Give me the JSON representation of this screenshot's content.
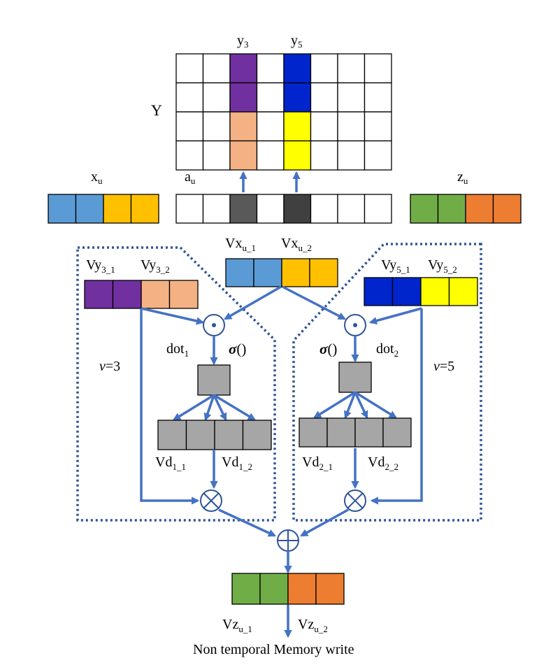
{
  "colors": {
    "white": "#FFFFFF",
    "blue": "#5B9BD5",
    "amber": "#FFC000",
    "green": "#70AD47",
    "orange": "#ED7D31",
    "purple": "#7030A0",
    "peach": "#F4B183",
    "navy": "#0025CC",
    "yellow": "#FFFF00",
    "gray": "#A6A6A6",
    "dark_gray": "#595959",
    "darker_gray": "#404040",
    "arrow": "#4472C4"
  },
  "matrix_Y": {
    "label": "Y",
    "col3_label": "y",
    "col3_sub": "3",
    "col5_label": "y",
    "col5_sub": "5",
    "rows": [
      [
        "white",
        "white",
        "purple",
        "white",
        "navy",
        "white",
        "white",
        "white"
      ],
      [
        "white",
        "white",
        "purple",
        "white",
        "navy",
        "white",
        "white",
        "white"
      ],
      [
        "white",
        "white",
        "peach",
        "white",
        "yellow",
        "white",
        "white",
        "white"
      ],
      [
        "white",
        "white",
        "peach",
        "white",
        "yellow",
        "white",
        "white",
        "white"
      ]
    ]
  },
  "x_u": {
    "label": "x",
    "sub": "u",
    "cells": [
      "blue",
      "blue",
      "amber",
      "amber"
    ]
  },
  "a_u": {
    "label": "a",
    "sub": "u",
    "cells": [
      "white",
      "white",
      "dark_gray",
      "white",
      "darker_gray",
      "white",
      "white",
      "white"
    ]
  },
  "z_u": {
    "label": "z",
    "sub": "u",
    "cells": [
      "green",
      "green",
      "orange",
      "orange"
    ]
  },
  "Vx": {
    "cells": [
      "blue",
      "blue",
      "amber",
      "amber"
    ],
    "label1": "Vx",
    "sub1": "u_1",
    "label2": "Vx",
    "sub2": "u_2"
  },
  "left": {
    "vy_cells": [
      "purple",
      "purple",
      "peach",
      "peach"
    ],
    "vy_label1": "Vy",
    "vy_sub1": "3_1",
    "vy_label2": "Vy",
    "vy_sub2": "3_2",
    "dot_label": "dot",
    "dot_sub": "1",
    "sigma": "σ",
    "sigma_parens": "()",
    "v_var": "v",
    "v_value": "=3",
    "vd_cells": [
      "gray",
      "gray",
      "gray",
      "gray"
    ],
    "vd_label1": "Vd",
    "vd_sub1": "1_1",
    "vd_label2": "Vd",
    "vd_sub2": "1_2"
  },
  "right": {
    "vy_cells": [
      "navy",
      "navy",
      "yellow",
      "yellow"
    ],
    "vy_label1": "Vy",
    "vy_sub1": "5_1",
    "vy_label2": "Vy",
    "vy_sub2": "5_2",
    "dot_label": "dot",
    "dot_sub": "2",
    "sigma": "σ",
    "sigma_parens": "()",
    "v_var": "v",
    "v_value": "=5",
    "vd_cells": [
      "gray",
      "gray",
      "gray",
      "gray"
    ],
    "vd_label1": "Vd",
    "vd_sub1": "2_1",
    "vd_label2": "Vd",
    "vd_sub2": "2_2"
  },
  "output": {
    "cells": [
      "green",
      "green",
      "orange",
      "orange"
    ],
    "label1": "Vz",
    "sub1": "u_1",
    "label2": "Vz",
    "sub2": "u_2",
    "caption": "Non temporal Memory write"
  }
}
